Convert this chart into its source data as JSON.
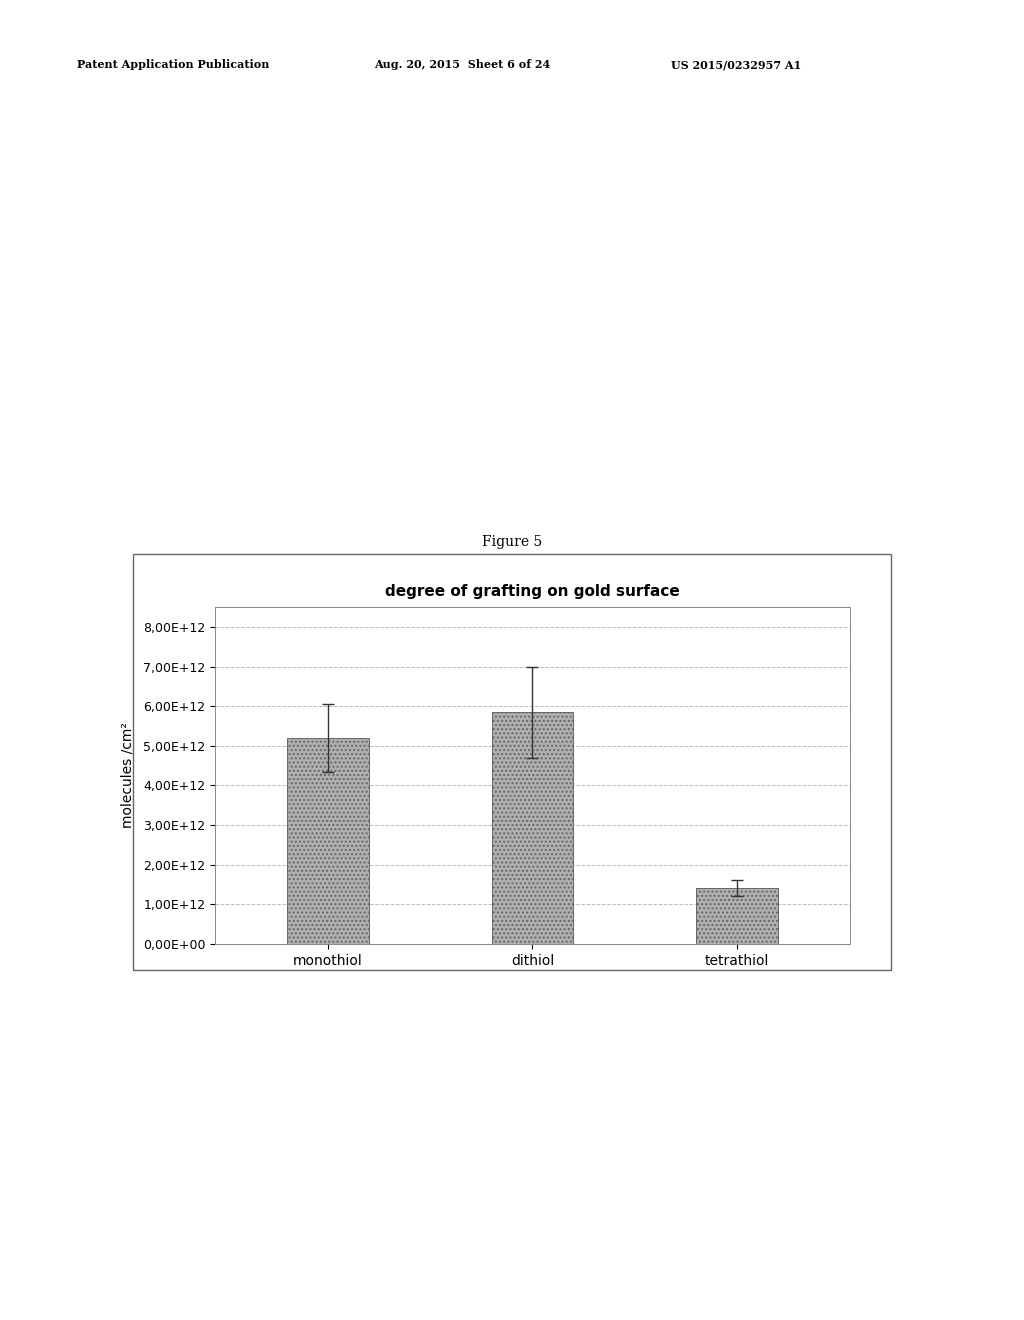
{
  "title": "degree of grafting on gold surface",
  "categories": [
    "monothiol",
    "dithiol",
    "tetrathiol"
  ],
  "values": [
    5200000000000.0,
    5850000000000.0,
    1400000000000.0
  ],
  "errors": [
    850000000000.0,
    1150000000000.0,
    200000000000.0
  ],
  "ylabel": "molecules /cm²",
  "ylim": [
    0,
    8500000000000.0
  ],
  "yticks": [
    0,
    1000000000000.0,
    2000000000000.0,
    3000000000000.0,
    4000000000000.0,
    5000000000000.0,
    6000000000000.0,
    7000000000000.0,
    8000000000000.0
  ],
  "ytick_labels": [
    "0,00E+00",
    "1,00E+12",
    "2,00E+12",
    "3,00E+12",
    "4,00E+12",
    "5,00E+12",
    "6,00E+12",
    "7,00E+12",
    "8,00E+12"
  ],
  "bar_color": "#b0b0b0",
  "bar_hatch": "....",
  "bar_edgecolor": "#666666",
  "error_color": "#333333",
  "grid_color": "#bbbbbb",
  "background_color": "#ffffff",
  "figure_caption": "Figure 5",
  "patent_header_left": "Patent Application Publication",
  "patent_header_mid": "Aug. 20, 2015  Sheet 6 of 24",
  "patent_header_right": "US 2015/0232957 A1",
  "title_fontsize": 11,
  "axis_fontsize": 10,
  "tick_fontsize": 9,
  "caption_fontsize": 10,
  "header_fontsize": 8
}
